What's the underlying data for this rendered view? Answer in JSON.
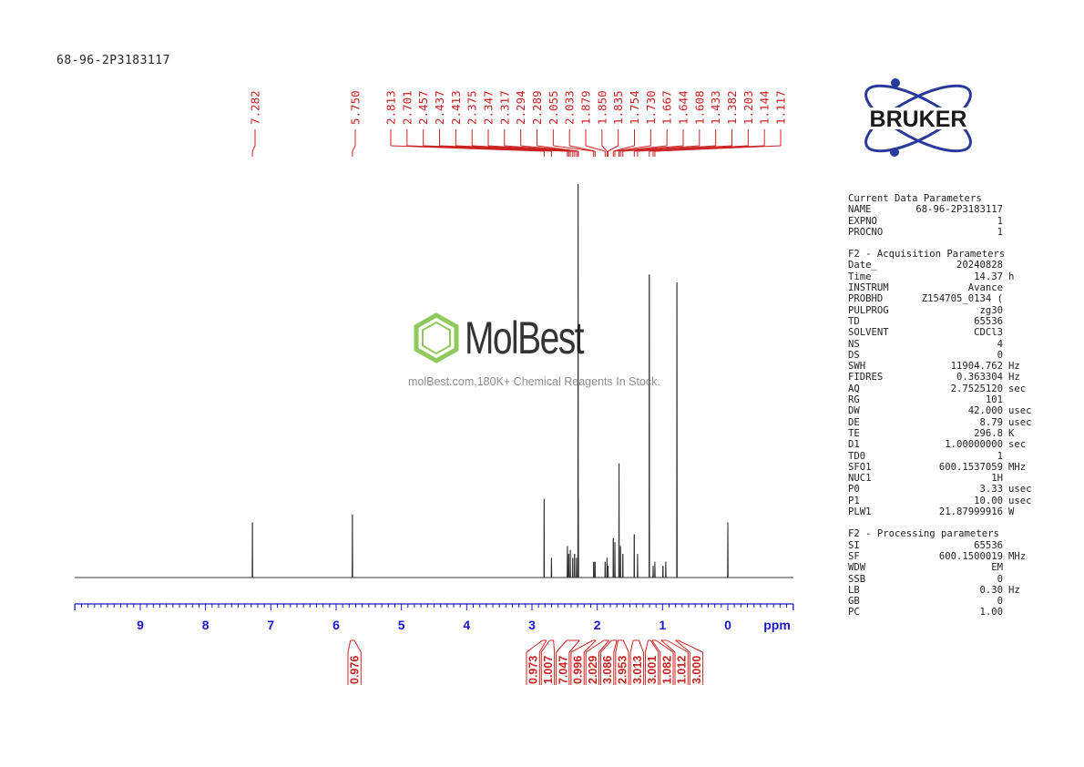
{
  "sample_id": "68-96-2P3183117",
  "logo": {
    "brand": "BRUKER",
    "color": "#2a3a9a"
  },
  "watermark": {
    "brand": "MolBest",
    "tagline": "molBest.com,180K+ Chemical Reagents In Stock.",
    "color": "#7dc142"
  },
  "params": {
    "groups": [
      {
        "title": "Current Data Parameters",
        "rows": [
          {
            "key": "NAME",
            "value": "68-96-2P3183117",
            "unit": ""
          },
          {
            "key": "EXPNO",
            "value": "1",
            "unit": ""
          },
          {
            "key": "PROCNO",
            "value": "1",
            "unit": ""
          }
        ]
      },
      {
        "title": "F2 - Acquisition Parameters",
        "rows": [
          {
            "key": "Date_",
            "value": "20240828",
            "unit": ""
          },
          {
            "key": "Time",
            "value": "14.37",
            "unit": "h"
          },
          {
            "key": "INSTRUM",
            "value": "Avance",
            "unit": ""
          },
          {
            "key": "PROBHD",
            "value": "Z154705_0134 (",
            "unit": ""
          },
          {
            "key": "PULPROG",
            "value": "zg30",
            "unit": ""
          },
          {
            "key": "TD",
            "value": "65536",
            "unit": ""
          },
          {
            "key": "SOLVENT",
            "value": "CDCl3",
            "unit": ""
          },
          {
            "key": "NS",
            "value": "4",
            "unit": ""
          },
          {
            "key": "DS",
            "value": "0",
            "unit": ""
          },
          {
            "key": "SWH",
            "value": "11904.762",
            "unit": "Hz"
          },
          {
            "key": "FIDRES",
            "value": "0.363304",
            "unit": "Hz"
          },
          {
            "key": "AQ",
            "value": "2.7525120",
            "unit": "sec"
          },
          {
            "key": "RG",
            "value": "101",
            "unit": ""
          },
          {
            "key": "DW",
            "value": "42.000",
            "unit": "usec"
          },
          {
            "key": "DE",
            "value": "8.79",
            "unit": "usec"
          },
          {
            "key": "TE",
            "value": "296.8",
            "unit": "K"
          },
          {
            "key": "D1",
            "value": "1.00000000",
            "unit": "sec"
          },
          {
            "key": "TD0",
            "value": "1",
            "unit": ""
          },
          {
            "key": "SFO1",
            "value": "600.1537059",
            "unit": "MHz"
          },
          {
            "key": "NUC1",
            "value": "1H",
            "unit": ""
          },
          {
            "key": "P0",
            "value": "3.33",
            "unit": "usec"
          },
          {
            "key": "P1",
            "value": "10.00",
            "unit": "usec"
          },
          {
            "key": "PLW1",
            "value": "21.87999916",
            "unit": "W"
          }
        ]
      },
      {
        "title": "F2 - Processing parameters",
        "rows": [
          {
            "key": "SI",
            "value": "65536",
            "unit": ""
          },
          {
            "key": "SF",
            "value": "600.1500019",
            "unit": "MHz"
          },
          {
            "key": "WDW",
            "value": "EM",
            "unit": ""
          },
          {
            "key": "SSB",
            "value": "0",
            "unit": ""
          },
          {
            "key": "LB",
            "value": "0.30",
            "unit": "Hz"
          },
          {
            "key": "GB",
            "value": "0",
            "unit": ""
          },
          {
            "key": "PC",
            "value": "1.00",
            "unit": ""
          }
        ]
      }
    ]
  },
  "chart_data": {
    "type": "line",
    "xlabel": "ppm",
    "xlim": [
      10,
      -1
    ],
    "x_reversed": true,
    "x_ticks": [
      9,
      8,
      7,
      6,
      5,
      4,
      3,
      2,
      1,
      0
    ],
    "annotation_color": "#cc2222",
    "axis_color": "#1a1acc",
    "peak_labels": [
      "7.282",
      "5.750",
      "2.813",
      "2.701",
      "2.457",
      "2.437",
      "2.413",
      "2.375",
      "2.347",
      "2.317",
      "2.294",
      "2.289",
      "2.055",
      "2.033",
      "1.879",
      "1.850",
      "1.835",
      "1.754",
      "1.730",
      "1.667",
      "1.644",
      "1.608",
      "1.433",
      "1.382",
      "1.203",
      "1.144",
      "1.117"
    ],
    "peaks": [
      {
        "x": 7.282,
        "y": 0.14
      },
      {
        "x": 5.75,
        "y": 0.16
      },
      {
        "x": 2.813,
        "y": 0.2
      },
      {
        "x": 2.701,
        "y": 0.05
      },
      {
        "x": 2.457,
        "y": 0.08
      },
      {
        "x": 2.437,
        "y": 0.06
      },
      {
        "x": 2.413,
        "y": 0.07
      },
      {
        "x": 2.375,
        "y": 0.05
      },
      {
        "x": 2.347,
        "y": 0.06
      },
      {
        "x": 2.317,
        "y": 0.05
      },
      {
        "x": 2.294,
        "y": 1.0
      },
      {
        "x": 2.289,
        "y": 0.2
      },
      {
        "x": 2.055,
        "y": 0.04
      },
      {
        "x": 2.033,
        "y": 0.04
      },
      {
        "x": 1.879,
        "y": 0.04
      },
      {
        "x": 1.85,
        "y": 0.05
      },
      {
        "x": 1.835,
        "y": 0.03
      },
      {
        "x": 1.754,
        "y": 0.1
      },
      {
        "x": 1.73,
        "y": 0.09
      },
      {
        "x": 1.667,
        "y": 0.29
      },
      {
        "x": 1.644,
        "y": 0.08
      },
      {
        "x": 1.608,
        "y": 0.06
      },
      {
        "x": 1.433,
        "y": 0.11
      },
      {
        "x": 1.382,
        "y": 0.06
      },
      {
        "x": 1.203,
        "y": 0.77
      },
      {
        "x": 1.144,
        "y": 0.03
      },
      {
        "x": 1.117,
        "y": 0.04
      },
      {
        "x": 0.994,
        "y": 0.03
      },
      {
        "x": 0.95,
        "y": 0.04
      },
      {
        "x": 0.78,
        "y": 0.75
      },
      {
        "x": 0.0,
        "y": 0.14
      }
    ],
    "integrals": [
      {
        "from": 5.78,
        "to": 5.72,
        "value": "0.976"
      },
      {
        "from": 2.84,
        "to": 2.78,
        "value": "0.973"
      },
      {
        "from": 2.73,
        "to": 2.67,
        "value": "1.007"
      },
      {
        "from": 2.47,
        "to": 2.27,
        "value": "7.047"
      },
      {
        "from": 2.07,
        "to": 2.02,
        "value": "0.996"
      },
      {
        "from": 1.9,
        "to": 1.82,
        "value": "2.029"
      },
      {
        "from": 1.78,
        "to": 1.7,
        "value": "3.086"
      },
      {
        "from": 1.68,
        "to": 1.6,
        "value": "2.953"
      },
      {
        "from": 1.45,
        "to": 1.36,
        "value": "3.013"
      },
      {
        "from": 1.22,
        "to": 1.18,
        "value": "3.001"
      },
      {
        "from": 1.16,
        "to": 1.1,
        "value": "1.082"
      },
      {
        "from": 1.02,
        "to": 0.93,
        "value": "1.012"
      },
      {
        "from": 0.8,
        "to": 0.76,
        "value": "3.000"
      }
    ]
  }
}
